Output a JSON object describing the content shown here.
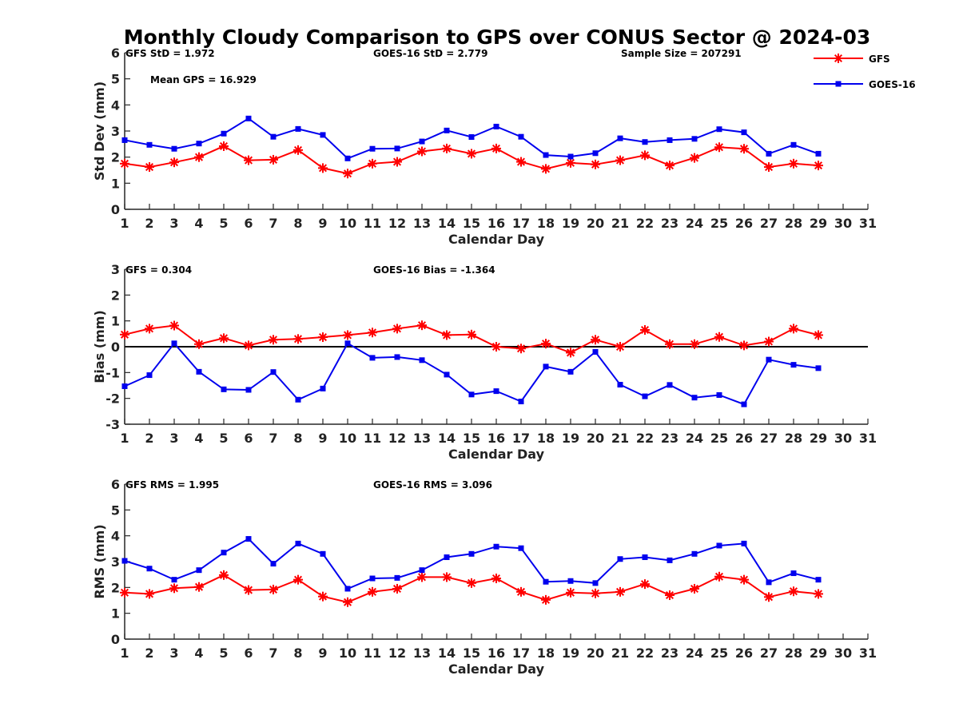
{
  "figure": {
    "title": "Monthly Cloudy Comparison to GPS over CONUS Sector @ 2024-03"
  },
  "legend": {
    "position": "top-right",
    "items": [
      {
        "label": "GFS",
        "color": "#ff0000",
        "marker": "asterisk"
      },
      {
        "label": "GOES-16",
        "color": "#0000ee",
        "marker": "square"
      }
    ]
  },
  "chart_data": [
    {
      "type": "line",
      "id": "std",
      "title": "",
      "xlabel": "Calendar Day",
      "ylabel": "Std Dev (mm)",
      "xlim": [
        1,
        31
      ],
      "ylim": [
        0,
        6
      ],
      "xticks": [
        1,
        2,
        3,
        4,
        5,
        6,
        7,
        8,
        9,
        10,
        11,
        12,
        13,
        14,
        15,
        16,
        17,
        18,
        19,
        20,
        21,
        22,
        23,
        24,
        25,
        26,
        27,
        28,
        29,
        30,
        31
      ],
      "yticks": [
        0,
        1,
        2,
        3,
        4,
        5,
        6
      ],
      "zero_line": false,
      "annotations": [
        {
          "text": "GFS StD = 1.972"
        },
        {
          "text": "GOES-16 StD = 2.779"
        },
        {
          "text": "Sample Size = 207291"
        },
        {
          "text": "Mean GPS = 16.929"
        }
      ],
      "x": [
        1,
        2,
        3,
        4,
        5,
        6,
        7,
        8,
        9,
        10,
        11,
        12,
        13,
        14,
        15,
        16,
        17,
        18,
        19,
        20,
        21,
        22,
        23,
        24,
        25,
        26,
        27,
        28,
        29
      ],
      "series": [
        {
          "name": "GFS",
          "color": "#ff0000",
          "marker": "asterisk",
          "values": [
            1.75,
            1.62,
            1.8,
            2.0,
            2.42,
            1.88,
            1.9,
            2.27,
            1.58,
            1.37,
            1.75,
            1.82,
            2.22,
            2.33,
            2.13,
            2.33,
            1.82,
            1.55,
            1.78,
            1.72,
            1.88,
            2.07,
            1.68,
            1.97,
            2.38,
            2.32,
            1.62,
            1.75,
            1.68
          ]
        },
        {
          "name": "GOES-16",
          "color": "#0000ee",
          "marker": "square",
          "values": [
            2.65,
            2.47,
            2.32,
            2.52,
            2.9,
            3.48,
            2.78,
            3.08,
            2.85,
            1.95,
            2.32,
            2.33,
            2.6,
            3.02,
            2.77,
            3.17,
            2.78,
            2.08,
            2.02,
            2.15,
            2.72,
            2.58,
            2.65,
            2.7,
            3.07,
            2.95,
            2.13,
            2.47,
            2.13
          ]
        }
      ]
    },
    {
      "type": "line",
      "id": "bias",
      "title": "",
      "xlabel": "Calendar Day",
      "ylabel": "Bias (mm)",
      "xlim": [
        1,
        31
      ],
      "ylim": [
        -3,
        3
      ],
      "xticks": [
        1,
        2,
        3,
        4,
        5,
        6,
        7,
        8,
        9,
        10,
        11,
        12,
        13,
        14,
        15,
        16,
        17,
        18,
        19,
        20,
        21,
        22,
        23,
        24,
        25,
        26,
        27,
        28,
        29,
        30,
        31
      ],
      "yticks": [
        -3,
        -2,
        -1,
        0,
        1,
        2,
        3
      ],
      "zero_line": true,
      "annotations": [
        {
          "text": "GFS = 0.304"
        },
        {
          "text": "GOES-16 Bias = -1.364"
        }
      ],
      "x": [
        1,
        2,
        3,
        4,
        5,
        6,
        7,
        8,
        9,
        10,
        11,
        12,
        13,
        14,
        15,
        16,
        17,
        18,
        19,
        20,
        21,
        22,
        23,
        24,
        25,
        26,
        27,
        28,
        29
      ],
      "series": [
        {
          "name": "GFS",
          "color": "#ff0000",
          "marker": "asterisk",
          "values": [
            0.47,
            0.7,
            0.82,
            0.1,
            0.33,
            0.05,
            0.27,
            0.3,
            0.37,
            0.45,
            0.55,
            0.7,
            0.83,
            0.45,
            0.47,
            0.0,
            -0.07,
            0.12,
            -0.23,
            0.27,
            0.0,
            0.65,
            0.1,
            0.1,
            0.38,
            0.05,
            0.2,
            0.7,
            0.45
          ]
        },
        {
          "name": "GOES-16",
          "color": "#0000ee",
          "marker": "square",
          "values": [
            -1.53,
            -1.1,
            0.13,
            -0.97,
            -1.65,
            -1.67,
            -0.98,
            -2.05,
            -1.62,
            0.13,
            -0.43,
            -0.4,
            -0.52,
            -1.08,
            -1.85,
            -1.72,
            -2.12,
            -0.77,
            -0.97,
            -0.2,
            -1.47,
            -1.92,
            -1.48,
            -1.97,
            -1.87,
            -2.23,
            -0.5,
            -0.7,
            -0.83
          ]
        }
      ]
    },
    {
      "type": "line",
      "id": "rms",
      "title": "",
      "xlabel": "Calendar Day",
      "ylabel": "RMS (mm)",
      "xlim": [
        1,
        31
      ],
      "ylim": [
        0,
        6
      ],
      "xticks": [
        1,
        2,
        3,
        4,
        5,
        6,
        7,
        8,
        9,
        10,
        11,
        12,
        13,
        14,
        15,
        16,
        17,
        18,
        19,
        20,
        21,
        22,
        23,
        24,
        25,
        26,
        27,
        28,
        29,
        30,
        31
      ],
      "yticks": [
        0,
        1,
        2,
        3,
        4,
        5,
        6
      ],
      "zero_line": false,
      "annotations": [
        {
          "text": "GFS RMS = 1.995"
        },
        {
          "text": "GOES-16 RMS = 3.096"
        }
      ],
      "x": [
        1,
        2,
        3,
        4,
        5,
        6,
        7,
        8,
        9,
        10,
        11,
        12,
        13,
        14,
        15,
        16,
        17,
        18,
        19,
        20,
        21,
        22,
        23,
        24,
        25,
        26,
        27,
        28,
        29
      ],
      "series": [
        {
          "name": "GFS",
          "color": "#ff0000",
          "marker": "asterisk",
          "values": [
            1.8,
            1.75,
            1.97,
            2.02,
            2.48,
            1.9,
            1.92,
            2.3,
            1.65,
            1.43,
            1.83,
            1.95,
            2.4,
            2.4,
            2.17,
            2.35,
            1.83,
            1.52,
            1.8,
            1.77,
            1.83,
            2.13,
            1.7,
            1.95,
            2.42,
            2.3,
            1.63,
            1.85,
            1.75
          ]
        },
        {
          "name": "GOES-16",
          "color": "#0000ee",
          "marker": "square",
          "values": [
            3.03,
            2.73,
            2.3,
            2.67,
            3.35,
            3.88,
            2.92,
            3.7,
            3.3,
            1.95,
            2.35,
            2.37,
            2.67,
            3.17,
            3.3,
            3.58,
            3.52,
            2.22,
            2.25,
            2.17,
            3.1,
            3.17,
            3.05,
            3.3,
            3.62,
            3.7,
            2.2,
            2.55,
            2.3
          ]
        }
      ]
    }
  ]
}
